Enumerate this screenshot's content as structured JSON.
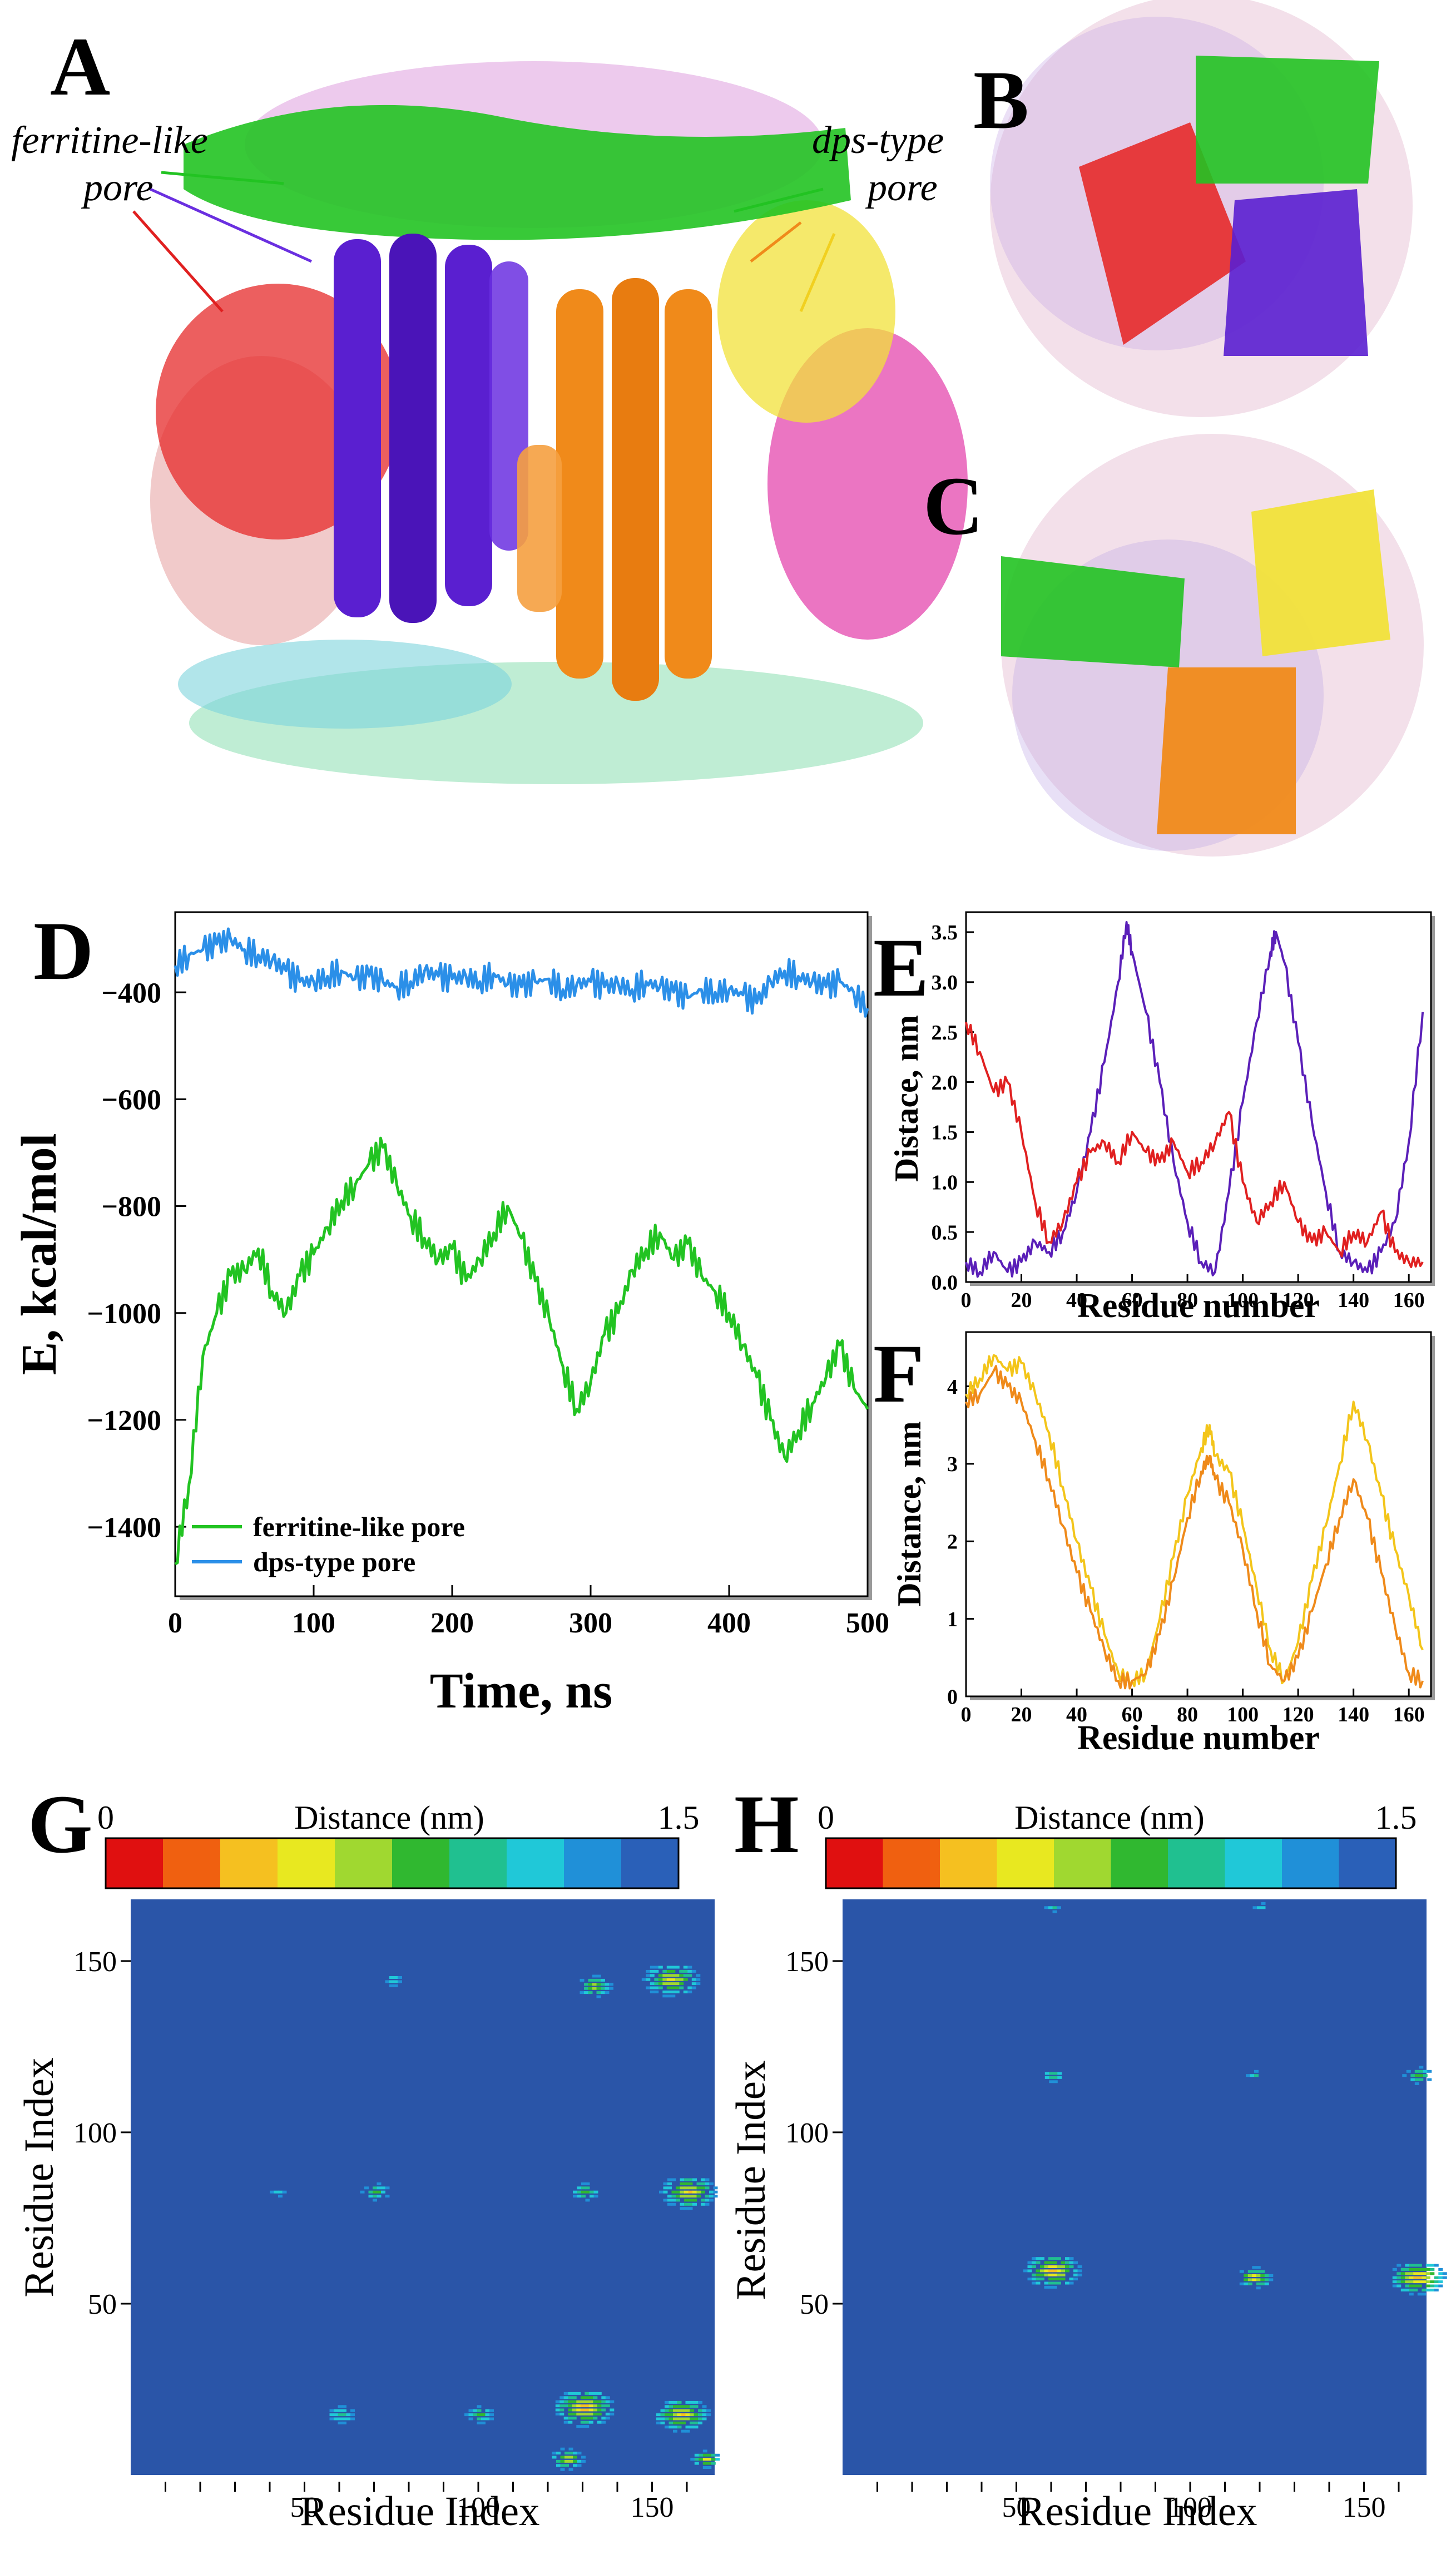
{
  "panels": {
    "A": {
      "label": "A",
      "annotations": [
        "ferritine-like",
        "pore",
        "dps-type",
        "pore"
      ]
    },
    "B": {
      "label": "B"
    },
    "C": {
      "label": "C"
    },
    "D": {
      "label": "D"
    },
    "E": {
      "label": "E"
    },
    "F": {
      "label": "F"
    },
    "G": {
      "label": "G"
    },
    "H": {
      "label": "H"
    }
  },
  "colors": {
    "green": "#22c322",
    "blue_line": "#2b8fe8",
    "purple": "#5a1fb8",
    "orange": "#ef8a1a",
    "red": "#e02020",
    "yellow": "#f3e52a",
    "magenta": "#e43ca8",
    "pink": "#d99a9a",
    "cyan": "#58c9d6",
    "seafoam": "#7fd9a6",
    "heat_bg": "#2a55a8"
  },
  "chart_data": [
    {
      "id": "D",
      "type": "line",
      "title": "",
      "xlabel": "Time, ns",
      "ylabel": "E, kcal/mol",
      "xlim": [
        0,
        500
      ],
      "ylim": [
        -1530,
        -250
      ],
      "xticks": [
        0,
        100,
        200,
        300,
        400,
        500
      ],
      "yticks": [
        -1400,
        -1200,
        -1000,
        -800,
        -600,
        -400
      ],
      "legend_position": "bottom-left",
      "series": [
        {
          "name": "ferritine-like pore",
          "color": "#22c322",
          "x": [
            0,
            10,
            20,
            30,
            40,
            50,
            60,
            70,
            80,
            90,
            100,
            110,
            120,
            130,
            140,
            150,
            160,
            170,
            180,
            190,
            200,
            210,
            220,
            230,
            240,
            250,
            260,
            270,
            280,
            290,
            300,
            310,
            320,
            330,
            340,
            350,
            360,
            370,
            380,
            390,
            400,
            410,
            420,
            430,
            440,
            450,
            460,
            470,
            480,
            490,
            500
          ],
          "y": [
            -1470,
            -1320,
            -1080,
            -1000,
            -930,
            -920,
            -880,
            -960,
            -1000,
            -930,
            -890,
            -840,
            -790,
            -760,
            -720,
            -690,
            -760,
            -820,
            -860,
            -900,
            -880,
            -940,
            -900,
            -850,
            -800,
            -860,
            -940,
            -1010,
            -1100,
            -1180,
            -1130,
            -1040,
            -1000,
            -920,
            -880,
            -850,
            -900,
            -870,
            -930,
            -960,
            -1000,
            -1060,
            -1120,
            -1200,
            -1270,
            -1220,
            -1170,
            -1120,
            -1060,
            -1140,
            -1180
          ]
        },
        {
          "name": "dps-type pore",
          "color": "#2b8fe8",
          "x": [
            0,
            10,
            20,
            30,
            40,
            50,
            60,
            70,
            80,
            90,
            100,
            110,
            120,
            130,
            140,
            150,
            160,
            170,
            180,
            190,
            200,
            210,
            220,
            230,
            240,
            250,
            260,
            270,
            280,
            290,
            300,
            310,
            320,
            330,
            340,
            350,
            360,
            370,
            380,
            390,
            400,
            410,
            420,
            430,
            440,
            450,
            460,
            470,
            480,
            490,
            500
          ],
          "y": [
            -350,
            -330,
            -320,
            -310,
            -300,
            -320,
            -330,
            -340,
            -360,
            -380,
            -380,
            -370,
            -360,
            -375,
            -370,
            -380,
            -390,
            -380,
            -360,
            -370,
            -375,
            -370,
            -380,
            -365,
            -385,
            -390,
            -380,
            -375,
            -395,
            -385,
            -380,
            -390,
            -385,
            -395,
            -380,
            -390,
            -400,
            -410,
            -395,
            -400,
            -395,
            -405,
            -420,
            -380,
            -360,
            -370,
            -380,
            -390,
            -380,
            -400,
            -430
          ]
        }
      ]
    },
    {
      "id": "E",
      "type": "line",
      "xlabel": "Residue number",
      "ylabel": "Distace, nm",
      "xlim": [
        0,
        168
      ],
      "ylim": [
        0,
        3.7
      ],
      "xticks": [
        0,
        20,
        40,
        60,
        80,
        100,
        120,
        140,
        160
      ],
      "yticks": [
        0.0,
        0.5,
        1.0,
        1.5,
        2.0,
        2.5,
        3.0,
        3.5
      ],
      "ytick_labels": [
        "0.0",
        "0.5",
        "1.0",
        "1.5",
        "2.0",
        "2.5",
        "3.0",
        "3.5"
      ],
      "series": [
        {
          "name": "purple",
          "color": "#5a1fb8",
          "x": [
            0,
            5,
            10,
            15,
            20,
            25,
            30,
            35,
            40,
            45,
            50,
            55,
            58,
            60,
            65,
            70,
            75,
            80,
            85,
            90,
            95,
            100,
            105,
            110,
            112,
            115,
            120,
            125,
            130,
            135,
            140,
            145,
            150,
            155,
            160,
            165
          ],
          "y": [
            0.2,
            0.1,
            0.3,
            0.1,
            0.2,
            0.4,
            0.3,
            0.5,
            0.9,
            1.5,
            2.2,
            3.0,
            3.6,
            3.3,
            2.7,
            2.0,
            1.2,
            0.6,
            0.2,
            0.1,
            0.9,
            1.8,
            2.6,
            3.3,
            3.5,
            3.2,
            2.4,
            1.6,
            0.9,
            0.3,
            0.2,
            0.1,
            0.3,
            0.6,
            1.4,
            2.7
          ]
        },
        {
          "name": "red",
          "color": "#e02020",
          "x": [
            0,
            5,
            10,
            15,
            20,
            25,
            30,
            35,
            40,
            45,
            50,
            55,
            60,
            65,
            70,
            75,
            80,
            85,
            90,
            95,
            100,
            105,
            110,
            115,
            120,
            125,
            130,
            135,
            140,
            145,
            150,
            155,
            160,
            165
          ],
          "y": [
            2.6,
            2.3,
            1.9,
            2.0,
            1.5,
            0.8,
            0.4,
            0.6,
            1.0,
            1.3,
            1.4,
            1.2,
            1.5,
            1.3,
            1.2,
            1.4,
            1.1,
            1.2,
            1.4,
            1.7,
            1.0,
            0.6,
            0.8,
            1.0,
            0.6,
            0.4,
            0.5,
            0.3,
            0.5,
            0.4,
            0.7,
            0.3,
            0.2,
            0.2
          ]
        }
      ]
    },
    {
      "id": "F",
      "type": "line",
      "xlabel": "Residue number",
      "ylabel": "Distance, nm",
      "xlim": [
        0,
        168
      ],
      "ylim": [
        0,
        4.7
      ],
      "xticks": [
        0,
        20,
        40,
        60,
        80,
        100,
        120,
        140,
        160
      ],
      "yticks": [
        0,
        1,
        2,
        3,
        4
      ],
      "series": [
        {
          "name": "yellow",
          "color": "#f3c51a",
          "x": [
            0,
            5,
            10,
            15,
            20,
            25,
            30,
            35,
            40,
            45,
            50,
            55,
            60,
            65,
            70,
            75,
            80,
            85,
            88,
            90,
            95,
            100,
            105,
            110,
            115,
            120,
            125,
            130,
            135,
            140,
            145,
            150,
            155,
            160,
            165
          ],
          "y": [
            3.9,
            4.1,
            4.4,
            4.2,
            4.3,
            3.9,
            3.4,
            2.7,
            2.0,
            1.4,
            0.8,
            0.3,
            0.2,
            0.3,
            1.0,
            1.8,
            2.6,
            3.2,
            3.5,
            3.1,
            2.9,
            2.2,
            1.4,
            0.6,
            0.2,
            0.7,
            1.5,
            2.2,
            3.0,
            3.8,
            3.3,
            2.6,
            1.9,
            1.3,
            0.6
          ]
        },
        {
          "name": "orange",
          "color": "#ef8a1a",
          "x": [
            0,
            5,
            10,
            15,
            20,
            25,
            30,
            35,
            40,
            45,
            50,
            55,
            60,
            65,
            70,
            75,
            80,
            85,
            88,
            90,
            95,
            100,
            105,
            110,
            115,
            120,
            125,
            130,
            135,
            140,
            145,
            150,
            155,
            160,
            165
          ],
          "y": [
            3.8,
            3.9,
            4.2,
            4.0,
            3.8,
            3.3,
            2.8,
            2.2,
            1.6,
            1.1,
            0.6,
            0.2,
            0.2,
            0.3,
            0.8,
            1.5,
            2.3,
            2.9,
            3.1,
            2.8,
            2.5,
            1.9,
            1.1,
            0.4,
            0.2,
            0.5,
            1.1,
            1.7,
            2.3,
            2.8,
            2.3,
            1.6,
            0.9,
            0.3,
            0.2
          ]
        }
      ]
    },
    {
      "id": "G",
      "type": "heatmap",
      "colorbar_label": "Distance (nm)",
      "colorbar_min": "0",
      "colorbar_max": "1.5",
      "range": [
        0,
        1.5
      ],
      "xlabel": "Residue Index",
      "ylabel": "Residue Index",
      "xlim": [
        0,
        168
      ],
      "ylim": [
        0,
        168
      ],
      "xticks": [
        50,
        100,
        150
      ],
      "yticks": [
        50,
        100,
        150
      ],
      "hotspots": [
        {
          "x": 155,
          "y": 145,
          "r": 8,
          "v": 0.45
        },
        {
          "x": 133,
          "y": 143,
          "r": 5,
          "v": 0.6
        },
        {
          "x": 75,
          "y": 145,
          "r": 3,
          "v": 1.0
        },
        {
          "x": 160,
          "y": 83,
          "r": 8,
          "v": 0.4
        },
        {
          "x": 130,
          "y": 83,
          "r": 4,
          "v": 0.7
        },
        {
          "x": 70,
          "y": 83,
          "r": 4,
          "v": 0.8
        },
        {
          "x": 42,
          "y": 83,
          "r": 2,
          "v": 1.0
        },
        {
          "x": 130,
          "y": 20,
          "r": 9,
          "v": 0.3
        },
        {
          "x": 158,
          "y": 18,
          "r": 8,
          "v": 0.4
        },
        {
          "x": 100,
          "y": 18,
          "r": 4,
          "v": 0.8
        },
        {
          "x": 60,
          "y": 18,
          "r": 4,
          "v": 0.9
        },
        {
          "x": 125,
          "y": 5,
          "r": 5,
          "v": 0.5
        },
        {
          "x": 165,
          "y": 5,
          "r": 4,
          "v": 0.4
        }
      ]
    },
    {
      "id": "H",
      "type": "heatmap",
      "colorbar_label": "Distance (nm)",
      "colorbar_min": "0",
      "colorbar_max": "1.5",
      "range": [
        0,
        1.5
      ],
      "xlabel": "Residue Index",
      "ylabel": "Residue Index",
      "xlim": [
        0,
        168
      ],
      "ylim": [
        0,
        168
      ],
      "xticks": [
        50,
        100,
        150
      ],
      "yticks": [
        50,
        100,
        150
      ],
      "hotspots": [
        {
          "x": 60,
          "y": 60,
          "r": 8,
          "v": 0.3
        },
        {
          "x": 118,
          "y": 58,
          "r": 5,
          "v": 0.4
        },
        {
          "x": 165,
          "y": 58,
          "r": 8,
          "v": 0.25
        },
        {
          "x": 60,
          "y": 117,
          "r": 3,
          "v": 0.9
        },
        {
          "x": 118,
          "y": 117,
          "r": 2,
          "v": 0.9
        },
        {
          "x": 165,
          "y": 117,
          "r": 4,
          "v": 0.7
        },
        {
          "x": 60,
          "y": 166,
          "r": 2,
          "v": 0.9
        },
        {
          "x": 120,
          "y": 166,
          "r": 2,
          "v": 1.0
        }
      ]
    }
  ]
}
